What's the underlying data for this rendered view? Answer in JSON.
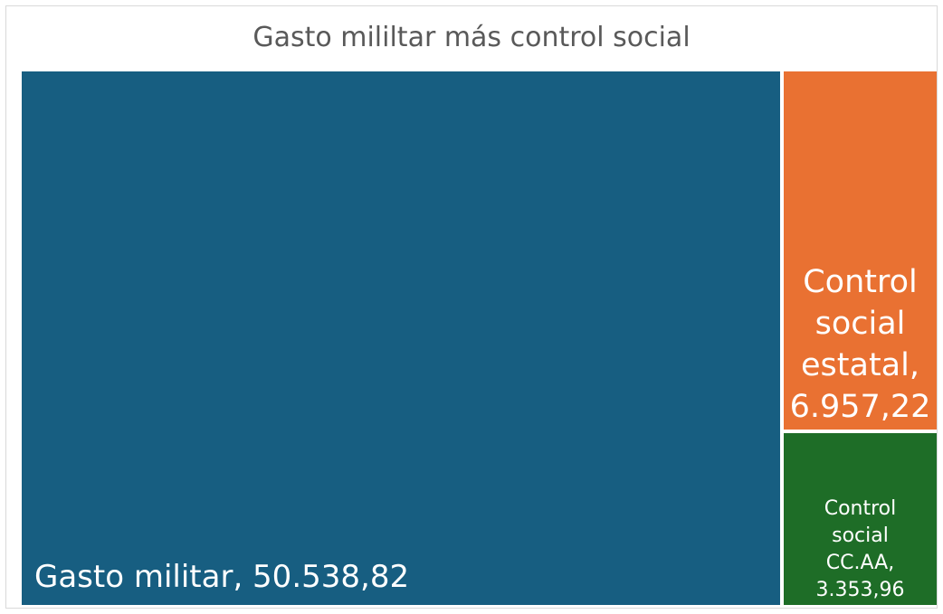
{
  "chart_data": {
    "type": "treemap",
    "title": "Gasto mililtar más control social",
    "items": [
      {
        "name": "Gasto militar",
        "value": 50538.82,
        "label": "Gasto militar, 50.538,82",
        "color": "#175e81"
      },
      {
        "name": "Control social estatal",
        "value": 6957.22,
        "label": "Control social estatal, 6.957,22",
        "color": "#e97132"
      },
      {
        "name": "Control social CC.AA",
        "value": 3353.96,
        "label": "Control social CC.AA, 3.353,96",
        "color": "#1e6d27"
      }
    ]
  }
}
